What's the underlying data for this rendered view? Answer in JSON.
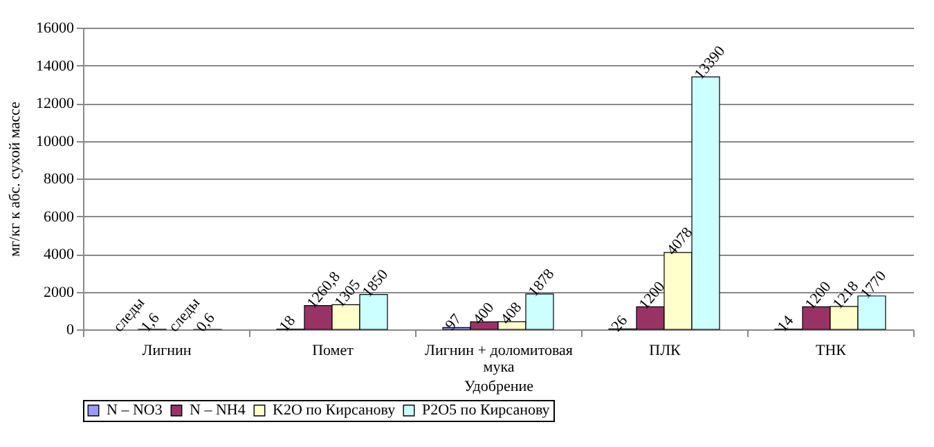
{
  "chart_data": {
    "type": "bar",
    "xlabel": "Удобрение",
    "ylabel": "мг/кг к абс. сухой массе",
    "categories": [
      "Лигнин",
      "Помет",
      "Лигнин + доломитовая мука",
      "ПЛК",
      "ТНК"
    ],
    "series": [
      {
        "name": "N – NO3",
        "color": "#9999ff",
        "values": [
          null,
          18,
          97,
          26,
          14
        ],
        "value_labels": [
          "следы",
          "18",
          "97",
          "26",
          "14"
        ]
      },
      {
        "name": "N – NH4",
        "color": "#993366",
        "values": [
          1.6,
          1260.8,
          400,
          1200,
          1200
        ],
        "value_labels": [
          "1,6",
          "1260,8",
          "400",
          "1200",
          "1200"
        ]
      },
      {
        "name": "K2O по Кирсанову",
        "color": "#ffffcc",
        "values": [
          null,
          1305,
          408,
          4078,
          1218
        ],
        "value_labels": [
          "следы",
          "1305",
          "408",
          "4078",
          "1218"
        ]
      },
      {
        "name": "P2O5 по Кирсанову",
        "color": "#ccffff",
        "values": [
          0.6,
          1850,
          1878,
          13390,
          1770
        ],
        "value_labels": [
          "0,6",
          "1850",
          "1878",
          "13390",
          "1770"
        ]
      }
    ],
    "ylim": [
      0,
      16000
    ],
    "yticks": [
      0,
      2000,
      4000,
      6000,
      8000,
      10000,
      12000,
      14000,
      16000
    ],
    "grid": "y",
    "legend": "bottom"
  }
}
